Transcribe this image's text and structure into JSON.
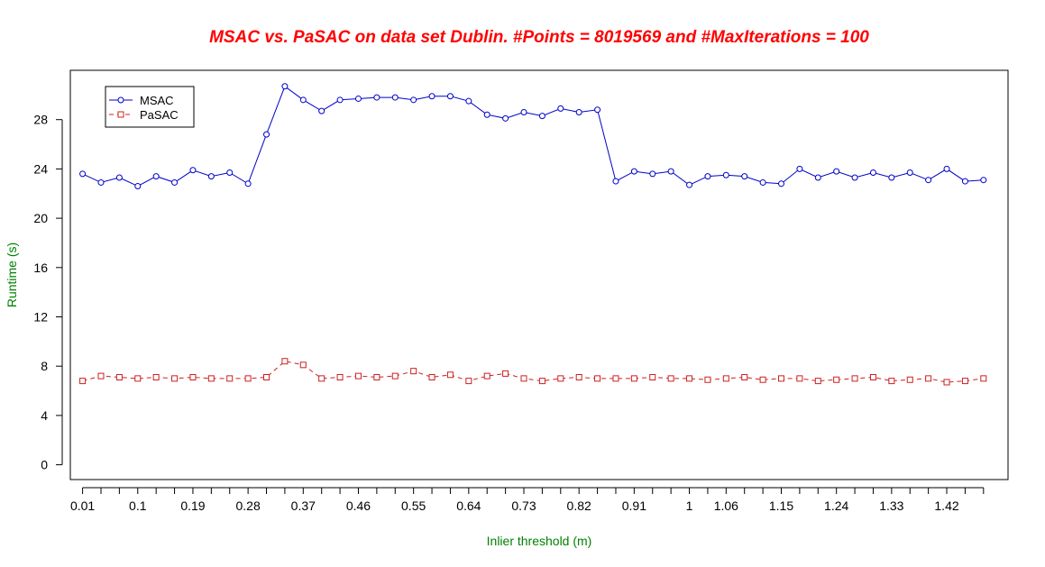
{
  "chart_data": {
    "type": "line",
    "title": "MSAC vs. PaSAC on data set Dublin. #Points = 8019569 and #MaxIterations = 100",
    "xlabel": "Inlier threshold (m)",
    "ylabel": "Runtime (s)",
    "x_tick_labels": [
      "0.01",
      "0.1",
      "0.19",
      "0.28",
      "0.37",
      "0.46",
      "0.55",
      "0.64",
      "0.73",
      "0.82",
      "0.91",
      "1",
      "1.06",
      "1.15",
      "1.24",
      "1.33",
      "1.42"
    ],
    "x_tick_positions": [
      0.01,
      0.1,
      0.19,
      0.28,
      0.37,
      0.46,
      0.55,
      0.64,
      0.73,
      0.82,
      0.91,
      1.0,
      1.06,
      1.15,
      1.24,
      1.33,
      1.42
    ],
    "xlim": [
      -0.01,
      1.52
    ],
    "y_ticks": [
      0,
      4,
      8,
      12,
      16,
      20,
      24,
      28
    ],
    "ylim": [
      -1.2,
      32.0
    ],
    "grid": false,
    "legend_position": "top-left",
    "x": [
      0.01,
      0.04,
      0.07,
      0.1,
      0.13,
      0.16,
      0.19,
      0.22,
      0.25,
      0.28,
      0.31,
      0.34,
      0.37,
      0.4,
      0.43,
      0.46,
      0.49,
      0.52,
      0.55,
      0.58,
      0.61,
      0.64,
      0.67,
      0.7,
      0.73,
      0.76,
      0.79,
      0.82,
      0.85,
      0.88,
      0.91,
      0.94,
      0.97,
      1.0,
      1.03,
      1.06,
      1.09,
      1.12,
      1.15,
      1.18,
      1.21,
      1.24,
      1.27,
      1.3,
      1.33,
      1.36,
      1.39,
      1.42,
      1.45,
      1.48
    ],
    "series": [
      {
        "name": "MSAC",
        "color": "#0000cc",
        "marker": "circle",
        "line_style": "solid",
        "values": [
          23.6,
          22.9,
          23.3,
          22.6,
          23.4,
          22.9,
          23.9,
          23.4,
          23.7,
          22.8,
          26.8,
          30.7,
          29.6,
          28.7,
          29.6,
          29.7,
          29.8,
          29.8,
          29.6,
          29.9,
          29.9,
          29.5,
          28.4,
          28.1,
          28.6,
          28.3,
          28.9,
          28.6,
          28.8,
          23.0,
          23.8,
          23.6,
          23.8,
          22.7,
          23.4,
          23.5,
          23.4,
          22.9,
          22.8,
          24.0,
          23.3,
          23.8,
          23.3,
          23.7,
          23.3,
          23.7,
          23.1,
          24.0,
          23.0,
          23.1
        ]
      },
      {
        "name": "PaSAC",
        "color": "#cc2020",
        "marker": "square",
        "line_style": "dashed",
        "values": [
          6.8,
          7.2,
          7.1,
          7.0,
          7.1,
          7.0,
          7.1,
          7.0,
          7.0,
          7.0,
          7.1,
          8.4,
          8.1,
          7.0,
          7.1,
          7.2,
          7.1,
          7.2,
          7.6,
          7.1,
          7.3,
          6.8,
          7.2,
          7.4,
          7.0,
          6.8,
          7.0,
          7.1,
          7.0,
          7.0,
          7.0,
          7.1,
          7.0,
          7.0,
          6.9,
          7.0,
          7.1,
          6.9,
          7.0,
          7.0,
          6.8,
          6.9,
          7.0,
          7.1,
          6.8,
          6.9,
          7.0,
          6.7,
          6.8,
          7.0
        ]
      }
    ]
  },
  "colors": {
    "title": "#ff0000",
    "axis_labels": "#008000",
    "axis": "#000000"
  }
}
